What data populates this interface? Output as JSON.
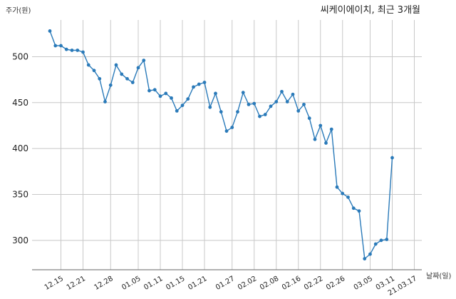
{
  "chart_data": {
    "type": "line",
    "title": "씨케이에이치, 최근 3개월",
    "ylabel": "주가(원)",
    "xlabel": "날짜(일)",
    "ylim": [
      268,
      540
    ],
    "yticks": [
      300,
      350,
      400,
      450,
      500
    ],
    "grid": true,
    "xtick_labels": [
      "12.15",
      "12.21",
      "12.28",
      "01.05",
      "01.11",
      "01.15",
      "01.21",
      "01.27",
      "02.02",
      "02.08",
      "02.16",
      "02.22",
      "02.26",
      "03.05",
      "03.11",
      "21.03.17"
    ],
    "xtick_index": [
      2,
      6,
      11,
      16,
      20,
      24,
      28,
      33,
      37,
      41,
      45,
      49,
      53,
      58,
      62,
      66
    ],
    "values": [
      528,
      512,
      512,
      508,
      507,
      507,
      505,
      491,
      485,
      476,
      451,
      469,
      491,
      481,
      476,
      472,
      488,
      496,
      463,
      464,
      457,
      460,
      455,
      441,
      447,
      454,
      467,
      470,
      472,
      445,
      460,
      440,
      419,
      423,
      440,
      461,
      448,
      449,
      435,
      437,
      446,
      451,
      462,
      451,
      459,
      441,
      448,
      433,
      410,
      425,
      406,
      421,
      358,
      351,
      347,
      335,
      332,
      280,
      285,
      296,
      300,
      301,
      390
    ]
  }
}
